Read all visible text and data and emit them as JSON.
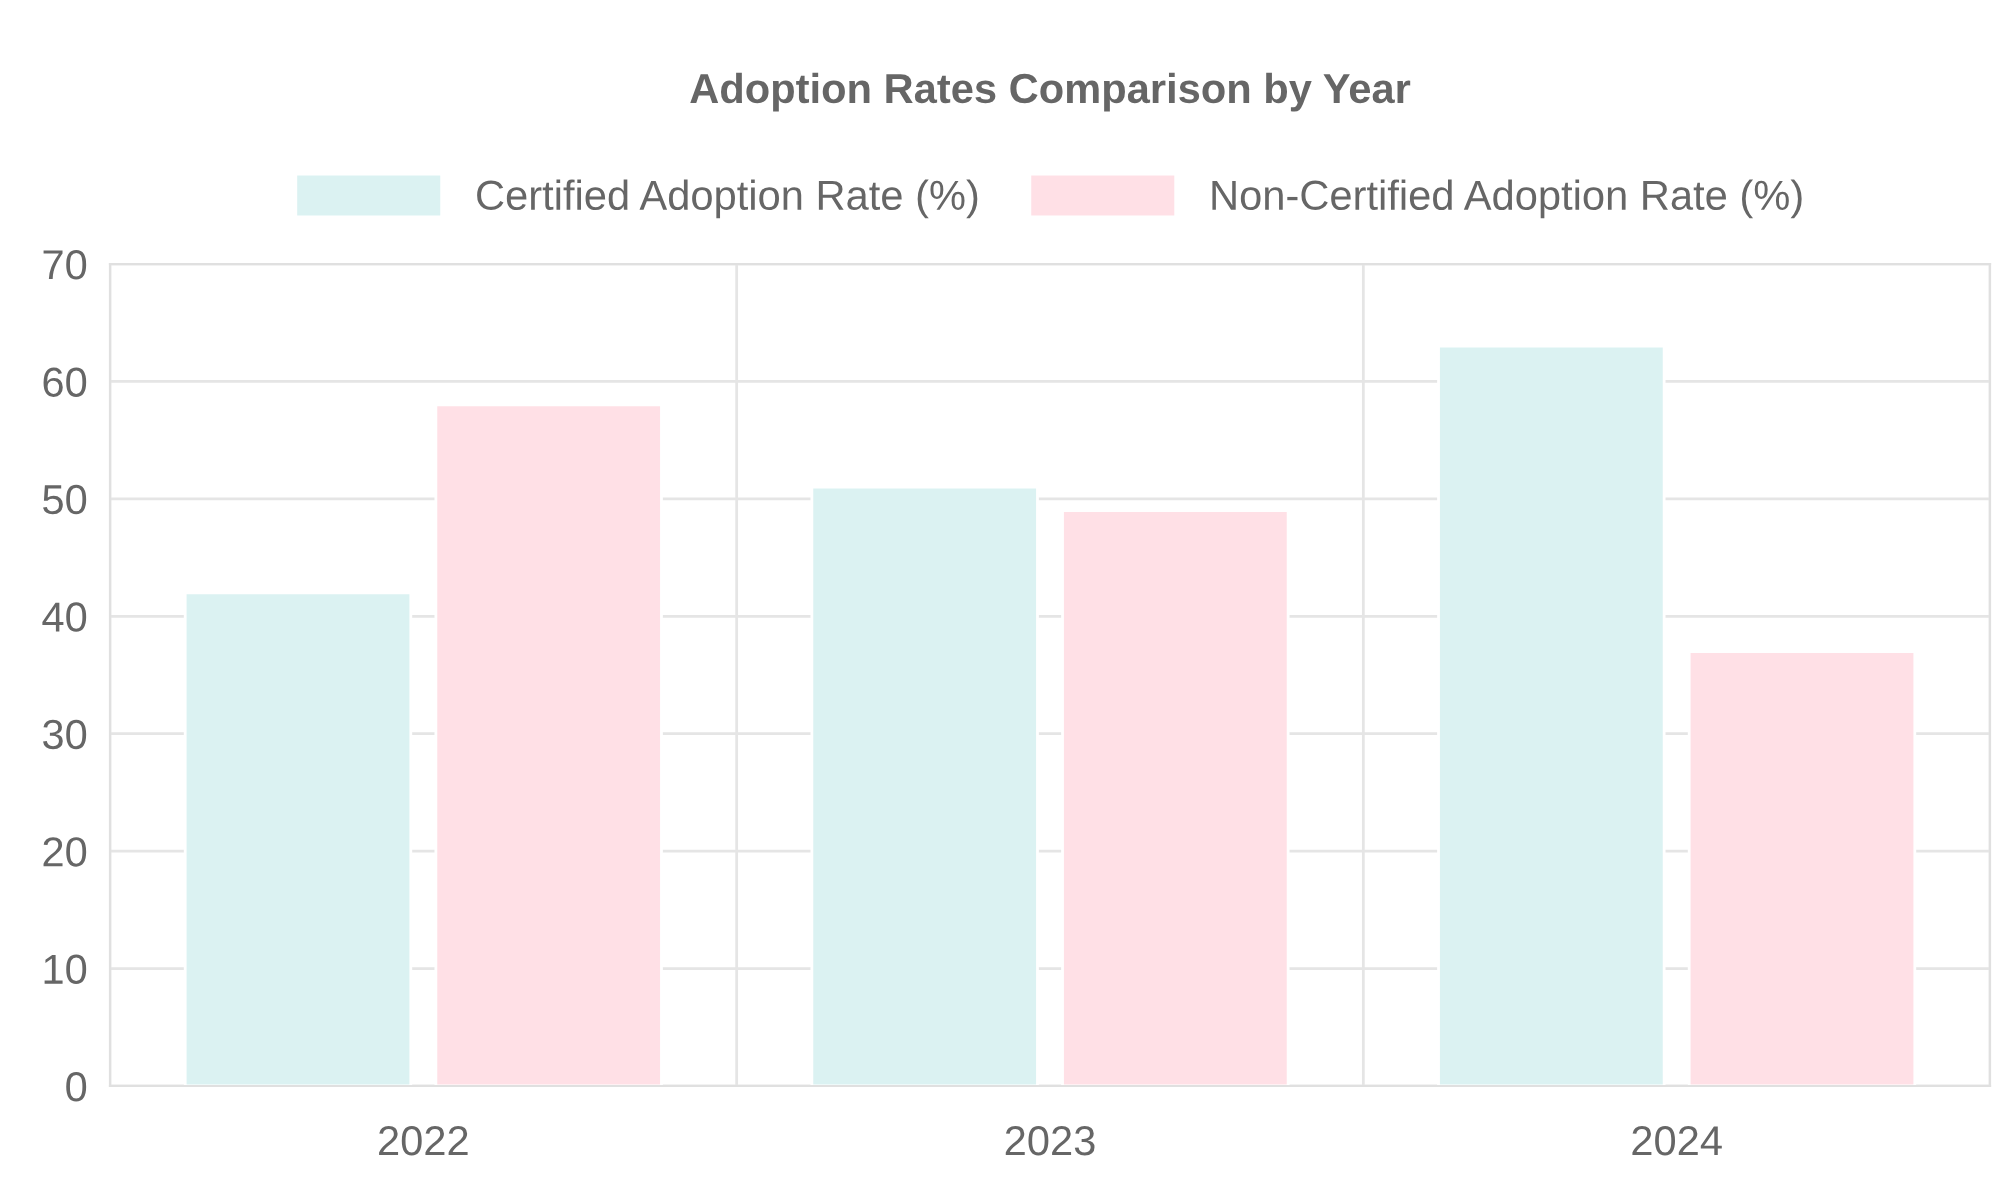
{
  "chart_data": {
    "type": "bar",
    "title": "Adoption Rates Comparison by Year",
    "categories": [
      "2022",
      "2023",
      "2024"
    ],
    "series": [
      {
        "name": "Certified Adoption Rate (%)",
        "color": "#dbf2f2",
        "values": [
          42,
          51,
          63
        ]
      },
      {
        "name": "Non-Certified Adoption Rate (%)",
        "color": "#ffe0e6",
        "values": [
          58,
          49,
          37
        ]
      }
    ],
    "ylim": [
      0,
      70
    ],
    "yticks": [
      0,
      10,
      20,
      30,
      40,
      50,
      60,
      70
    ],
    "grid": true,
    "legend": "top"
  }
}
